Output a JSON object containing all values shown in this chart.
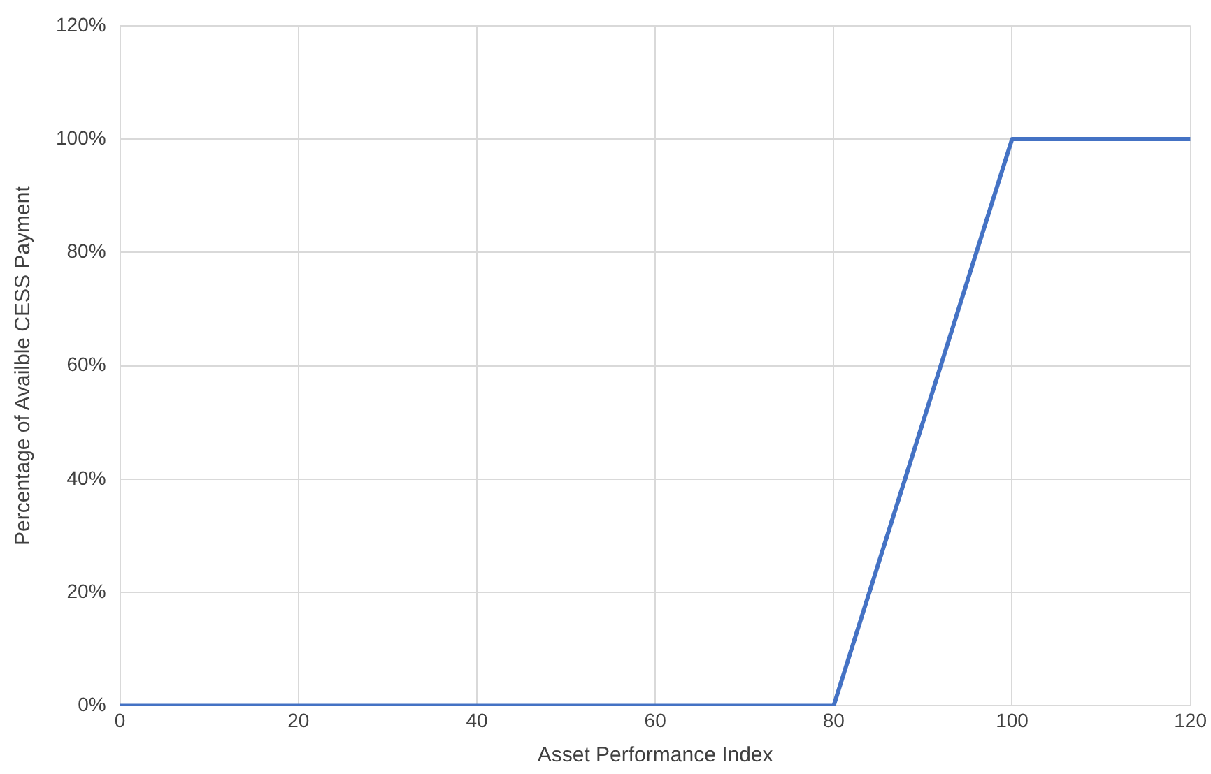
{
  "chart_data": {
    "type": "line",
    "xlabel": "Asset Performance Index",
    "ylabel": "Percentage of Availble CESS Payment",
    "x": [
      0,
      80,
      100,
      120
    ],
    "series": [
      {
        "color": "#4472c4",
        "values": [
          0,
          0,
          100,
          100
        ]
      }
    ],
    "xlim": [
      0,
      120
    ],
    "xticks": [
      0,
      20,
      40,
      60,
      80,
      100,
      120
    ],
    "ylim": [
      0,
      120
    ],
    "yticks": [
      {
        "value": 0,
        "label": "0%"
      },
      {
        "value": 20,
        "label": "20%"
      },
      {
        "value": 40,
        "label": "40%"
      },
      {
        "value": 60,
        "label": "60%"
      },
      {
        "value": 80,
        "label": "80%"
      },
      {
        "value": 100,
        "label": "100%"
      },
      {
        "value": 120,
        "label": "120%"
      }
    ],
    "grid": true,
    "legend": false,
    "marker": "none",
    "line_style": "solid"
  }
}
